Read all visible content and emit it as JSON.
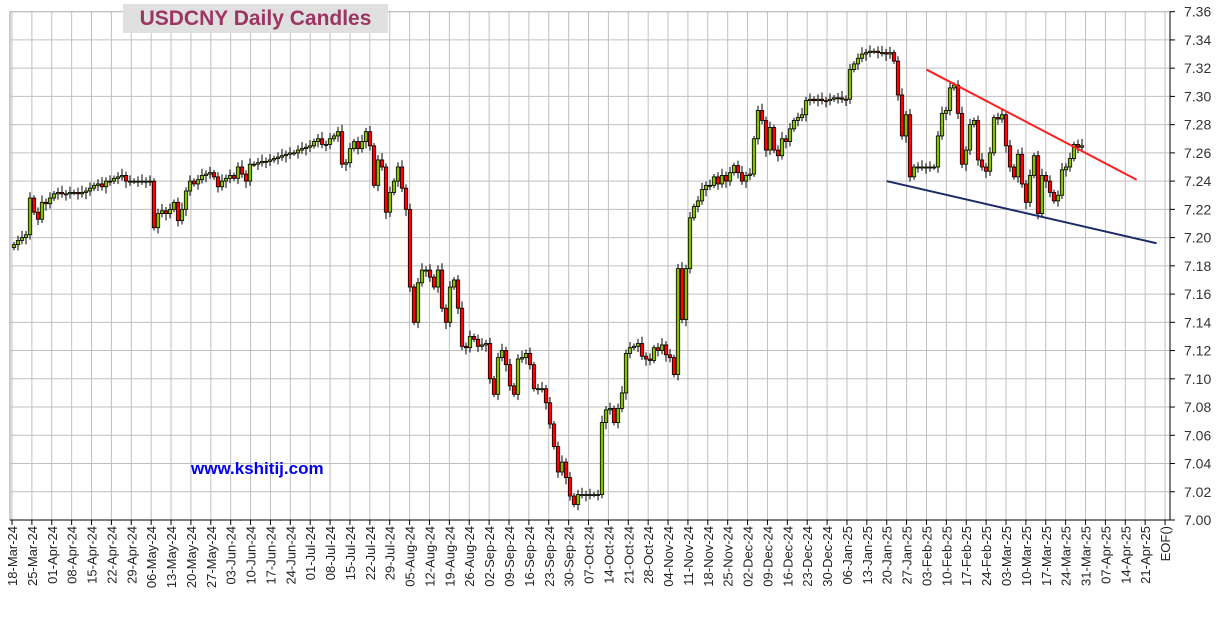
{
  "chart_data": {
    "type": "candlestick",
    "title": "USDCNY Daily Candles",
    "watermark": "www.kshitij.com",
    "ylim": [
      7.0,
      7.36
    ],
    "y_ticks": [
      "7.00",
      "7.02",
      "7.04",
      "7.06",
      "7.08",
      "7.10",
      "7.12",
      "7.14",
      "7.16",
      "7.18",
      "7.20",
      "7.22",
      "7.24",
      "7.26",
      "7.28",
      "7.30",
      "7.32",
      "7.34",
      "7.36"
    ],
    "x_tick_labels": [
      "18-Mar-24",
      "25-Mar-24",
      "01-Apr-24",
      "08-Apr-24",
      "15-Apr-24",
      "22-Apr-24",
      "29-Apr-24",
      "06-May-24",
      "13-May-24",
      "20-May-24",
      "27-May-24",
      "03-Jun-24",
      "10-Jun-24",
      "17-Jun-24",
      "24-Jun-24",
      "01-Jul-24",
      "08-Jul-24",
      "15-Jul-24",
      "22-Jul-24",
      "29-Jul-24",
      "05-Aug-24",
      "12-Aug-24",
      "19-Aug-24",
      "26-Aug-24",
      "02-Sep-24",
      "09-Sep-24",
      "16-Sep-24",
      "23-Sep-24",
      "30-Sep-24",
      "07-Oct-24",
      "14-Oct-24",
      "21-Oct-24",
      "28-Oct-24",
      "04-Nov-24",
      "11-Nov-24",
      "18-Nov-24",
      "25-Nov-24",
      "02-Dec-24",
      "09-Dec-24",
      "16-Dec-24",
      "23-Dec-24",
      "30-Dec-24",
      "06-Jan-25",
      "13-Jan-25",
      "20-Jan-25",
      "27-Jan-25",
      "03-Feb-25",
      "10-Feb-25",
      "17-Feb-25",
      "24-Feb-25",
      "03-Mar-25",
      "10-Mar-25",
      "17-Mar-25",
      "24-Mar-25",
      "31-Mar-25",
      "07-Apr-25",
      "14-Apr-25",
      "21-Apr-25",
      "EOF()"
    ],
    "grid": true,
    "first_open": 7.193,
    "daily_close": [
      7.195,
      7.198,
      7.2,
      7.202,
      7.228,
      7.218,
      7.213,
      7.225,
      7.224,
      7.228,
      7.231,
      7.232,
      7.231,
      7.231,
      7.232,
      7.232,
      7.231,
      7.232,
      7.233,
      7.235,
      7.237,
      7.238,
      7.236,
      7.24,
      7.24,
      7.242,
      7.243,
      7.244,
      7.24,
      7.24,
      7.24,
      7.24,
      7.24,
      7.24,
      7.24,
      7.207,
      7.217,
      7.219,
      7.217,
      7.22,
      7.225,
      7.212,
      7.22,
      7.233,
      7.24,
      7.238,
      7.241,
      7.244,
      7.245,
      7.246,
      7.243,
      7.236,
      7.24,
      7.242,
      7.244,
      7.242,
      7.25,
      7.245,
      7.24,
      7.252,
      7.252,
      7.253,
      7.254,
      7.254,
      7.255,
      7.256,
      7.257,
      7.258,
      7.259,
      7.26,
      7.26,
      7.262,
      7.263,
      7.264,
      7.265,
      7.268,
      7.27,
      7.266,
      7.266,
      7.27,
      7.272,
      7.275,
      7.252,
      7.253,
      7.263,
      7.268,
      7.263,
      7.268,
      7.275,
      7.265,
      7.237,
      7.255,
      7.25,
      7.218,
      7.232,
      7.24,
      7.25,
      7.235,
      7.22,
      7.165,
      7.14,
      7.168,
      7.177,
      7.177,
      7.172,
      7.165,
      7.177,
      7.15,
      7.14,
      7.165,
      7.17,
      7.15,
      7.123,
      7.122,
      7.13,
      7.128,
      7.123,
      7.124,
      7.125,
      7.1,
      7.089,
      7.115,
      7.12,
      7.11,
      7.095,
      7.089,
      7.114,
      7.115,
      7.118,
      7.11,
      7.093,
      7.093,
      7.093,
      7.083,
      7.068,
      7.052,
      7.034,
      7.041,
      7.03,
      7.017,
      7.011,
      7.018,
      7.018,
      7.018,
      7.018,
      7.018,
      7.018,
      7.069,
      7.078,
      7.079,
      7.069,
      7.079,
      7.09,
      7.118,
      7.122,
      7.123,
      7.125,
      7.116,
      7.114,
      7.113,
      7.122,
      7.12,
      7.124,
      7.117,
      7.115,
      7.103,
      7.178,
      7.142,
      7.178,
      7.214,
      7.222,
      7.226,
      7.234,
      7.237,
      7.237,
      7.243,
      7.238,
      7.244,
      7.24,
      7.246,
      7.251,
      7.246,
      7.24,
      7.244,
      7.245,
      7.27,
      7.29,
      7.283,
      7.262,
      7.278,
      7.262,
      7.258,
      7.27,
      7.268,
      7.277,
      7.283,
      7.285,
      7.287,
      7.297,
      7.298,
      7.297,
      7.298,
      7.297,
      7.297,
      7.298,
      7.299,
      7.299,
      7.298,
      7.298,
      7.319,
      7.323,
      7.327,
      7.33,
      7.331,
      7.332,
      7.332,
      7.331,
      7.331,
      7.33,
      7.331,
      7.325,
      7.301,
      7.272,
      7.287,
      7.243,
      7.25,
      7.25,
      7.25,
      7.25,
      7.25,
      7.25,
      7.272,
      7.288,
      7.29,
      7.306,
      7.308,
      7.288,
      7.252,
      7.262,
      7.28,
      7.283,
      7.255,
      7.25,
      7.247,
      7.26,
      7.285,
      7.284,
      7.287,
      7.265,
      7.25,
      7.243,
      7.259,
      7.238,
      7.225,
      7.244,
      7.258,
      7.217,
      7.244,
      7.24,
      7.232,
      7.226,
      7.23,
      7.248,
      7.25,
      7.256,
      7.266,
      7.264,
      7.265
    ],
    "trendlines": [
      {
        "color": "#ff2020",
        "start": [
          "03-Feb-25",
          7.319
        ],
        "end": [
          "18-Apr-25",
          7.241
        ]
      },
      {
        "color": "#1a2a66",
        "start": [
          "20-Jan-25",
          7.24
        ],
        "end": [
          "25-Apr-25",
          7.196
        ]
      }
    ],
    "colors": {
      "up": "#88c000",
      "down": "#ff0000",
      "grid": "#c0c0c0",
      "title": "#9b3562",
      "watermark": "#0000ee"
    }
  }
}
